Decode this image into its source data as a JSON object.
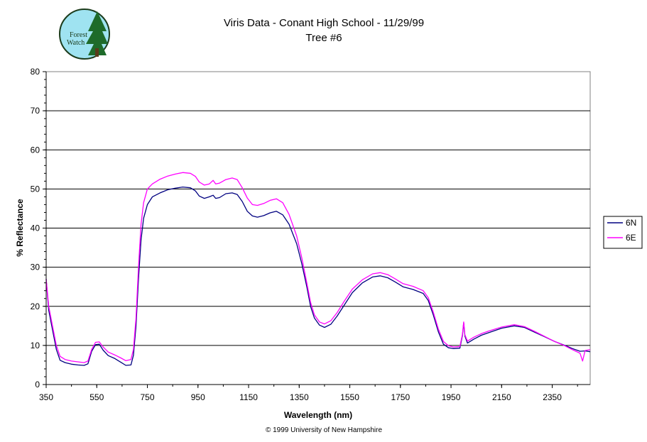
{
  "logo": {
    "line1": "Forest",
    "line2": "Watch"
  },
  "footer": "© 1999 University of New Hampshire",
  "chart_data": {
    "type": "line",
    "title": "Viris Data - Conant High School - 11/29/99",
    "subtitle": "Tree #6",
    "xlabel": "Wavelength (nm)",
    "ylabel": "% Reflectance",
    "xlim": [
      350,
      2500
    ],
    "ylim": [
      0,
      80
    ],
    "xticks": [
      350,
      550,
      750,
      950,
      1150,
      1350,
      1550,
      1750,
      1950,
      2150,
      2350
    ],
    "yticks": [
      0,
      10,
      20,
      30,
      40,
      50,
      60,
      70,
      80
    ],
    "grid": "horizontal",
    "legend": "right",
    "series": [
      {
        "name": "6N",
        "color": "#000080",
        "points": [
          [
            350,
            27
          ],
          [
            360,
            19
          ],
          [
            375,
            14
          ],
          [
            390,
            9
          ],
          [
            405,
            6.2
          ],
          [
            425,
            5.6
          ],
          [
            450,
            5.2
          ],
          [
            475,
            5.0
          ],
          [
            500,
            4.9
          ],
          [
            515,
            5.3
          ],
          [
            530,
            8.5
          ],
          [
            545,
            10.2
          ],
          [
            560,
            10.3
          ],
          [
            575,
            8.8
          ],
          [
            595,
            7.4
          ],
          [
            620,
            6.7
          ],
          [
            645,
            5.7
          ],
          [
            665,
            4.9
          ],
          [
            685,
            5.0
          ],
          [
            695,
            7.5
          ],
          [
            705,
            15
          ],
          [
            715,
            27
          ],
          [
            725,
            37
          ],
          [
            735,
            42.5
          ],
          [
            750,
            46
          ],
          [
            770,
            48
          ],
          [
            800,
            49
          ],
          [
            830,
            49.8
          ],
          [
            860,
            50.2
          ],
          [
            890,
            50.5
          ],
          [
            920,
            50.3
          ],
          [
            940,
            49.5
          ],
          [
            955,
            48.2
          ],
          [
            975,
            47.6
          ],
          [
            995,
            48.0
          ],
          [
            1010,
            48.4
          ],
          [
            1020,
            47.6
          ],
          [
            1035,
            47.8
          ],
          [
            1060,
            48.8
          ],
          [
            1085,
            49.0
          ],
          [
            1105,
            48.6
          ],
          [
            1125,
            46.8
          ],
          [
            1145,
            44.3
          ],
          [
            1165,
            43.1
          ],
          [
            1185,
            42.8
          ],
          [
            1210,
            43.2
          ],
          [
            1235,
            43.9
          ],
          [
            1260,
            44.3
          ],
          [
            1285,
            43.4
          ],
          [
            1310,
            41.0
          ],
          [
            1340,
            36
          ],
          [
            1360,
            31
          ],
          [
            1380,
            25
          ],
          [
            1395,
            20
          ],
          [
            1410,
            17
          ],
          [
            1430,
            15.2
          ],
          [
            1450,
            14.6
          ],
          [
            1475,
            15.4
          ],
          [
            1500,
            17.5
          ],
          [
            1530,
            20.5
          ],
          [
            1560,
            23.5
          ],
          [
            1600,
            26.0
          ],
          [
            1640,
            27.5
          ],
          [
            1670,
            27.8
          ],
          [
            1700,
            27.3
          ],
          [
            1730,
            26.2
          ],
          [
            1760,
            25.0
          ],
          [
            1800,
            24.3
          ],
          [
            1840,
            23.3
          ],
          [
            1860,
            21.5
          ],
          [
            1880,
            17.8
          ],
          [
            1900,
            13.5
          ],
          [
            1920,
            10.3
          ],
          [
            1940,
            9.4
          ],
          [
            1960,
            9.2
          ],
          [
            1985,
            9.3
          ],
          [
            1995,
            12.5
          ],
          [
            2000,
            15.8
          ],
          [
            2005,
            12.4
          ],
          [
            2015,
            10.6
          ],
          [
            2040,
            11.6
          ],
          [
            2070,
            12.6
          ],
          [
            2100,
            13.3
          ],
          [
            2150,
            14.4
          ],
          [
            2200,
            15.0
          ],
          [
            2240,
            14.6
          ],
          [
            2280,
            13.4
          ],
          [
            2320,
            12.2
          ],
          [
            2360,
            11.0
          ],
          [
            2400,
            10.0
          ],
          [
            2430,
            9.2
          ],
          [
            2460,
            8.5
          ],
          [
            2480,
            8.6
          ],
          [
            2500,
            8.4
          ]
        ]
      },
      {
        "name": "6E",
        "color": "#ff00ff",
        "points": [
          [
            350,
            27
          ],
          [
            360,
            20
          ],
          [
            375,
            15
          ],
          [
            390,
            10
          ],
          [
            405,
            7.2
          ],
          [
            425,
            6.4
          ],
          [
            450,
            6.0
          ],
          [
            475,
            5.8
          ],
          [
            500,
            5.6
          ],
          [
            515,
            6.0
          ],
          [
            530,
            9.0
          ],
          [
            545,
            10.8
          ],
          [
            560,
            10.9
          ],
          [
            575,
            9.6
          ],
          [
            595,
            8.3
          ],
          [
            620,
            7.6
          ],
          [
            645,
            6.8
          ],
          [
            665,
            6.1
          ],
          [
            685,
            6.4
          ],
          [
            695,
            9.0
          ],
          [
            705,
            17
          ],
          [
            715,
            30
          ],
          [
            725,
            41
          ],
          [
            735,
            46.5
          ],
          [
            750,
            50
          ],
          [
            770,
            51.3
          ],
          [
            800,
            52.5
          ],
          [
            830,
            53.3
          ],
          [
            860,
            53.8
          ],
          [
            890,
            54.2
          ],
          [
            920,
            54.0
          ],
          [
            940,
            53.2
          ],
          [
            955,
            51.8
          ],
          [
            975,
            51.0
          ],
          [
            995,
            51.3
          ],
          [
            1010,
            52.2
          ],
          [
            1020,
            51.3
          ],
          [
            1035,
            51.5
          ],
          [
            1060,
            52.4
          ],
          [
            1085,
            52.8
          ],
          [
            1105,
            52.4
          ],
          [
            1125,
            50.3
          ],
          [
            1145,
            47.7
          ],
          [
            1165,
            46.0
          ],
          [
            1185,
            45.8
          ],
          [
            1210,
            46.3
          ],
          [
            1235,
            47.1
          ],
          [
            1260,
            47.5
          ],
          [
            1285,
            46.5
          ],
          [
            1310,
            43.5
          ],
          [
            1340,
            38
          ],
          [
            1360,
            32.5
          ],
          [
            1380,
            26
          ],
          [
            1395,
            21
          ],
          [
            1410,
            17.8
          ],
          [
            1430,
            16.0
          ],
          [
            1450,
            15.5
          ],
          [
            1475,
            16.3
          ],
          [
            1500,
            18.4
          ],
          [
            1530,
            21.5
          ],
          [
            1560,
            24.4
          ],
          [
            1600,
            26.8
          ],
          [
            1640,
            28.3
          ],
          [
            1670,
            28.6
          ],
          [
            1700,
            28.1
          ],
          [
            1730,
            27.0
          ],
          [
            1760,
            25.8
          ],
          [
            1800,
            25.1
          ],
          [
            1840,
            24.0
          ],
          [
            1860,
            22.2
          ],
          [
            1880,
            18.5
          ],
          [
            1900,
            14.2
          ],
          [
            1920,
            11.0
          ],
          [
            1940,
            9.9
          ],
          [
            1960,
            9.6
          ],
          [
            1985,
            9.7
          ],
          [
            1995,
            12.8
          ],
          [
            2000,
            16.0
          ],
          [
            2005,
            12.7
          ],
          [
            2015,
            11.1
          ],
          [
            2040,
            12.1
          ],
          [
            2070,
            13.0
          ],
          [
            2100,
            13.7
          ],
          [
            2150,
            14.7
          ],
          [
            2200,
            15.3
          ],
          [
            2240,
            14.8
          ],
          [
            2280,
            13.6
          ],
          [
            2320,
            12.3
          ],
          [
            2360,
            11.0
          ],
          [
            2400,
            9.9
          ],
          [
            2430,
            8.9
          ],
          [
            2460,
            8.0
          ],
          [
            2470,
            6.0
          ],
          [
            2480,
            8.7
          ],
          [
            2500,
            8.9
          ]
        ]
      }
    ]
  }
}
